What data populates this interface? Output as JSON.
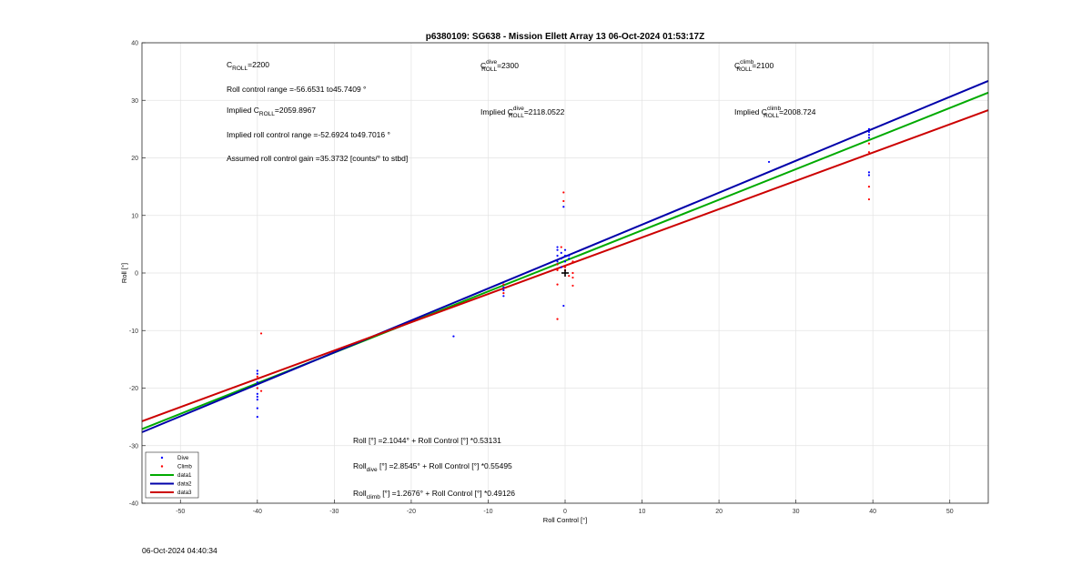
{
  "chart_data": {
    "type": "scatter",
    "title": "p6380109: SG638 - Mission Ellett Array 13 06-Oct-2024 01:53:17Z",
    "xlabel": "Roll Control [°]",
    "ylabel": "Roll [°]",
    "xlim": [
      -55,
      55
    ],
    "ylim": [
      -40,
      40
    ],
    "x_ticks": [
      -50,
      -40,
      -30,
      -20,
      -10,
      0,
      10,
      20,
      30,
      40,
      50
    ],
    "y_ticks": [
      -40,
      -30,
      -20,
      -10,
      0,
      10,
      20,
      30,
      40
    ],
    "grid": true,
    "legend_position": "bottom-left",
    "legend": [
      "Dive",
      "Climb",
      "data1",
      "data2",
      "data3"
    ],
    "colors": {
      "dive": "#0000ff",
      "climb": "#ff0000",
      "data1": "#00aa00",
      "data2": "#0000aa",
      "data3": "#cc0000"
    },
    "series": [
      {
        "name": "Dive",
        "kind": "points",
        "color": "#0000ff",
        "points": [
          [
            -40,
            -17
          ],
          [
            -40,
            -17.5
          ],
          [
            -40,
            -19
          ],
          [
            -40,
            -20
          ],
          [
            -40,
            -21
          ],
          [
            -40,
            -21.5
          ],
          [
            -40,
            -22
          ],
          [
            -40,
            -23.5
          ],
          [
            -40,
            -25
          ],
          [
            -14.5,
            -11
          ],
          [
            -8,
            -2.5
          ],
          [
            -8,
            -3
          ],
          [
            -8,
            -4
          ],
          [
            -1,
            2
          ],
          [
            -1,
            3
          ],
          [
            -1,
            4
          ],
          [
            -1,
            4.5
          ],
          [
            -0.5,
            1
          ],
          [
            -0.5,
            2.5
          ],
          [
            -0.5,
            3.5
          ],
          [
            -0.2,
            11.5
          ],
          [
            -0.2,
            -5.7
          ],
          [
            0,
            3
          ],
          [
            0,
            4
          ],
          [
            0,
            2
          ],
          [
            0.5,
            2.5
          ],
          [
            0.5,
            3
          ],
          [
            26.5,
            19.3
          ],
          [
            39.5,
            25
          ],
          [
            39.5,
            24.5
          ],
          [
            39.5,
            24
          ],
          [
            39.5,
            23.5
          ],
          [
            39.5,
            17.5
          ],
          [
            39.5,
            17
          ]
        ]
      },
      {
        "name": "Climb",
        "kind": "points",
        "color": "#ff0000",
        "points": [
          [
            -39.5,
            -10.5
          ],
          [
            -39.5,
            -20.5
          ],
          [
            -40,
            -18
          ],
          [
            -40,
            -20
          ],
          [
            -8,
            -2
          ],
          [
            -8,
            -3.5
          ],
          [
            -1,
            -2
          ],
          [
            -1,
            -8
          ],
          [
            -1,
            0.5
          ],
          [
            -1,
            1.5
          ],
          [
            -0.5,
            4.5
          ],
          [
            -0.2,
            14
          ],
          [
            -0.2,
            12.5
          ],
          [
            0,
            1
          ],
          [
            0,
            0.5
          ],
          [
            0.5,
            1.5
          ],
          [
            0.5,
            -0.5
          ],
          [
            1,
            0
          ],
          [
            1,
            -0.8
          ],
          [
            1,
            -2.2
          ],
          [
            1,
            2
          ],
          [
            39.5,
            22.5
          ],
          [
            39.5,
            21
          ],
          [
            39.5,
            15
          ],
          [
            39.5,
            12.8
          ]
        ]
      },
      {
        "name": "data1",
        "kind": "line",
        "color": "#00aa00",
        "intercept": 2.1044,
        "slope": 0.53131
      },
      {
        "name": "data2",
        "kind": "line",
        "color": "#0000aa",
        "intercept": 2.8545,
        "slope": 0.55495
      },
      {
        "name": "data3",
        "kind": "line",
        "color": "#cc0000",
        "intercept": 1.2676,
        "slope": 0.49126
      }
    ],
    "annotations": {
      "c_roll": {
        "label": "C",
        "sub": "ROLL",
        "value": "=2200"
      },
      "range": "Roll control range =-56.6531 to45.7409 °",
      "implied_c_roll": {
        "prefix": "Implied C",
        "sub": "ROLL",
        "value": "=2059.8967"
      },
      "implied_range": "Implied roll control range =-52.6924 to49.7016 °",
      "gain": "Assumed roll control gain =35.3732 [counts/° to stbd]",
      "c_dive": {
        "label": "C",
        "sup": "dive",
        "sub": "ROLL",
        "value": "=2300"
      },
      "implied_c_dive": {
        "prefix": "Implied C",
        "sup": "dive",
        "sub": "ROLL",
        "value": "=2118.0522"
      },
      "c_climb": {
        "label": "C",
        "sup": "climb",
        "sub": "ROLL",
        "value": "=2100"
      },
      "implied_c_climb": {
        "prefix": "Implied C",
        "sup": "climb",
        "sub": "ROLL",
        "value": "=2008.724"
      },
      "fit_all": "Roll [°] =2.1044° + Roll Control [°] *0.53131",
      "fit_dive": {
        "a": "Roll",
        "sub": "dive",
        "b": " [°] =2.8545° + Roll Control [°] *0.55495"
      },
      "fit_climb": {
        "a": "Roll",
        "sub": "climb",
        "b": " [°] =1.2676° + Roll Control [°] *0.49126"
      }
    }
  },
  "footer": {
    "timestamp": "06-Oct-2024 04:40:34"
  }
}
